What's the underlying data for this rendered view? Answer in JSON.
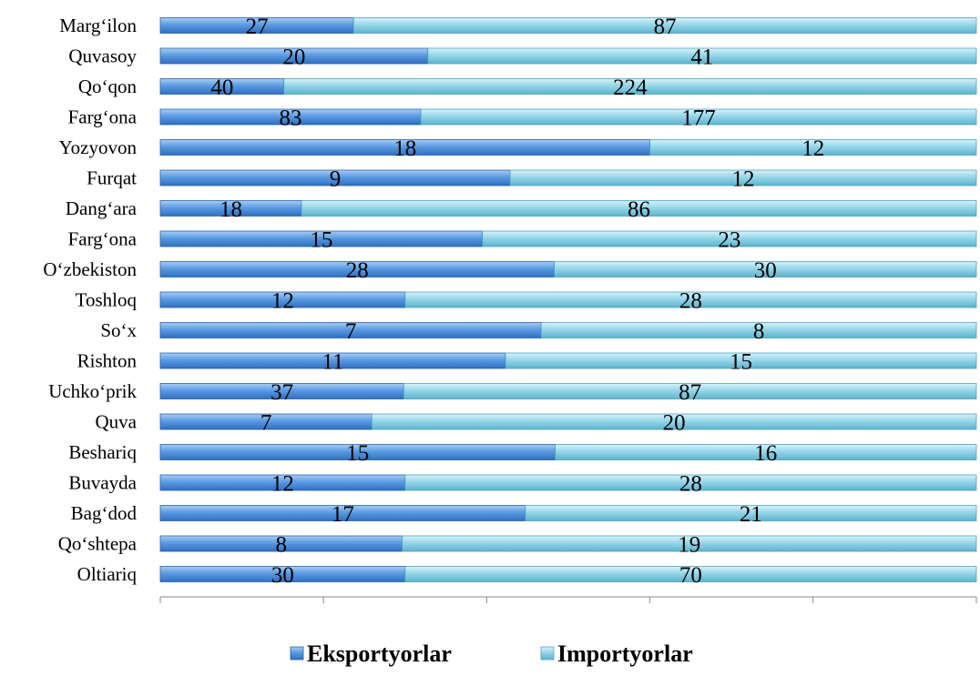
{
  "chart_data": {
    "type": "bar",
    "orientation": "horizontal",
    "stacking": "percent",
    "categories": [
      "Marg‘ilon",
      "Quvasoy",
      "Qo‘qon",
      "Farg‘ona",
      "Yozyovon",
      "Furqat",
      "Dang‘ara",
      "Farg‘ona",
      "O‘zbekiston",
      "Toshloq",
      "So‘x",
      "Rishton",
      "Uchko‘prik",
      "Quva",
      "Beshariq",
      "Buvayda",
      "Bag‘dod",
      "Qo‘shtepa",
      "Oltiariq"
    ],
    "series": [
      {
        "name": "Eksportyorlar",
        "color": "#4f8fdc",
        "values": [
          27,
          20,
          40,
          83,
          18,
          9,
          18,
          15,
          28,
          12,
          7,
          11,
          37,
          7,
          15,
          12,
          17,
          8,
          30
        ]
      },
      {
        "name": "Importyorlar",
        "color": "#8fd3e6",
        "values": [
          87,
          41,
          224,
          177,
          12,
          12,
          86,
          23,
          30,
          28,
          8,
          15,
          87,
          20,
          16,
          28,
          21,
          19,
          70
        ]
      }
    ],
    "title": "",
    "xlabel": "",
    "ylabel": "",
    "xlim": [
      0,
      100
    ],
    "grid": false,
    "data_labels": true,
    "legend_position": "bottom"
  }
}
